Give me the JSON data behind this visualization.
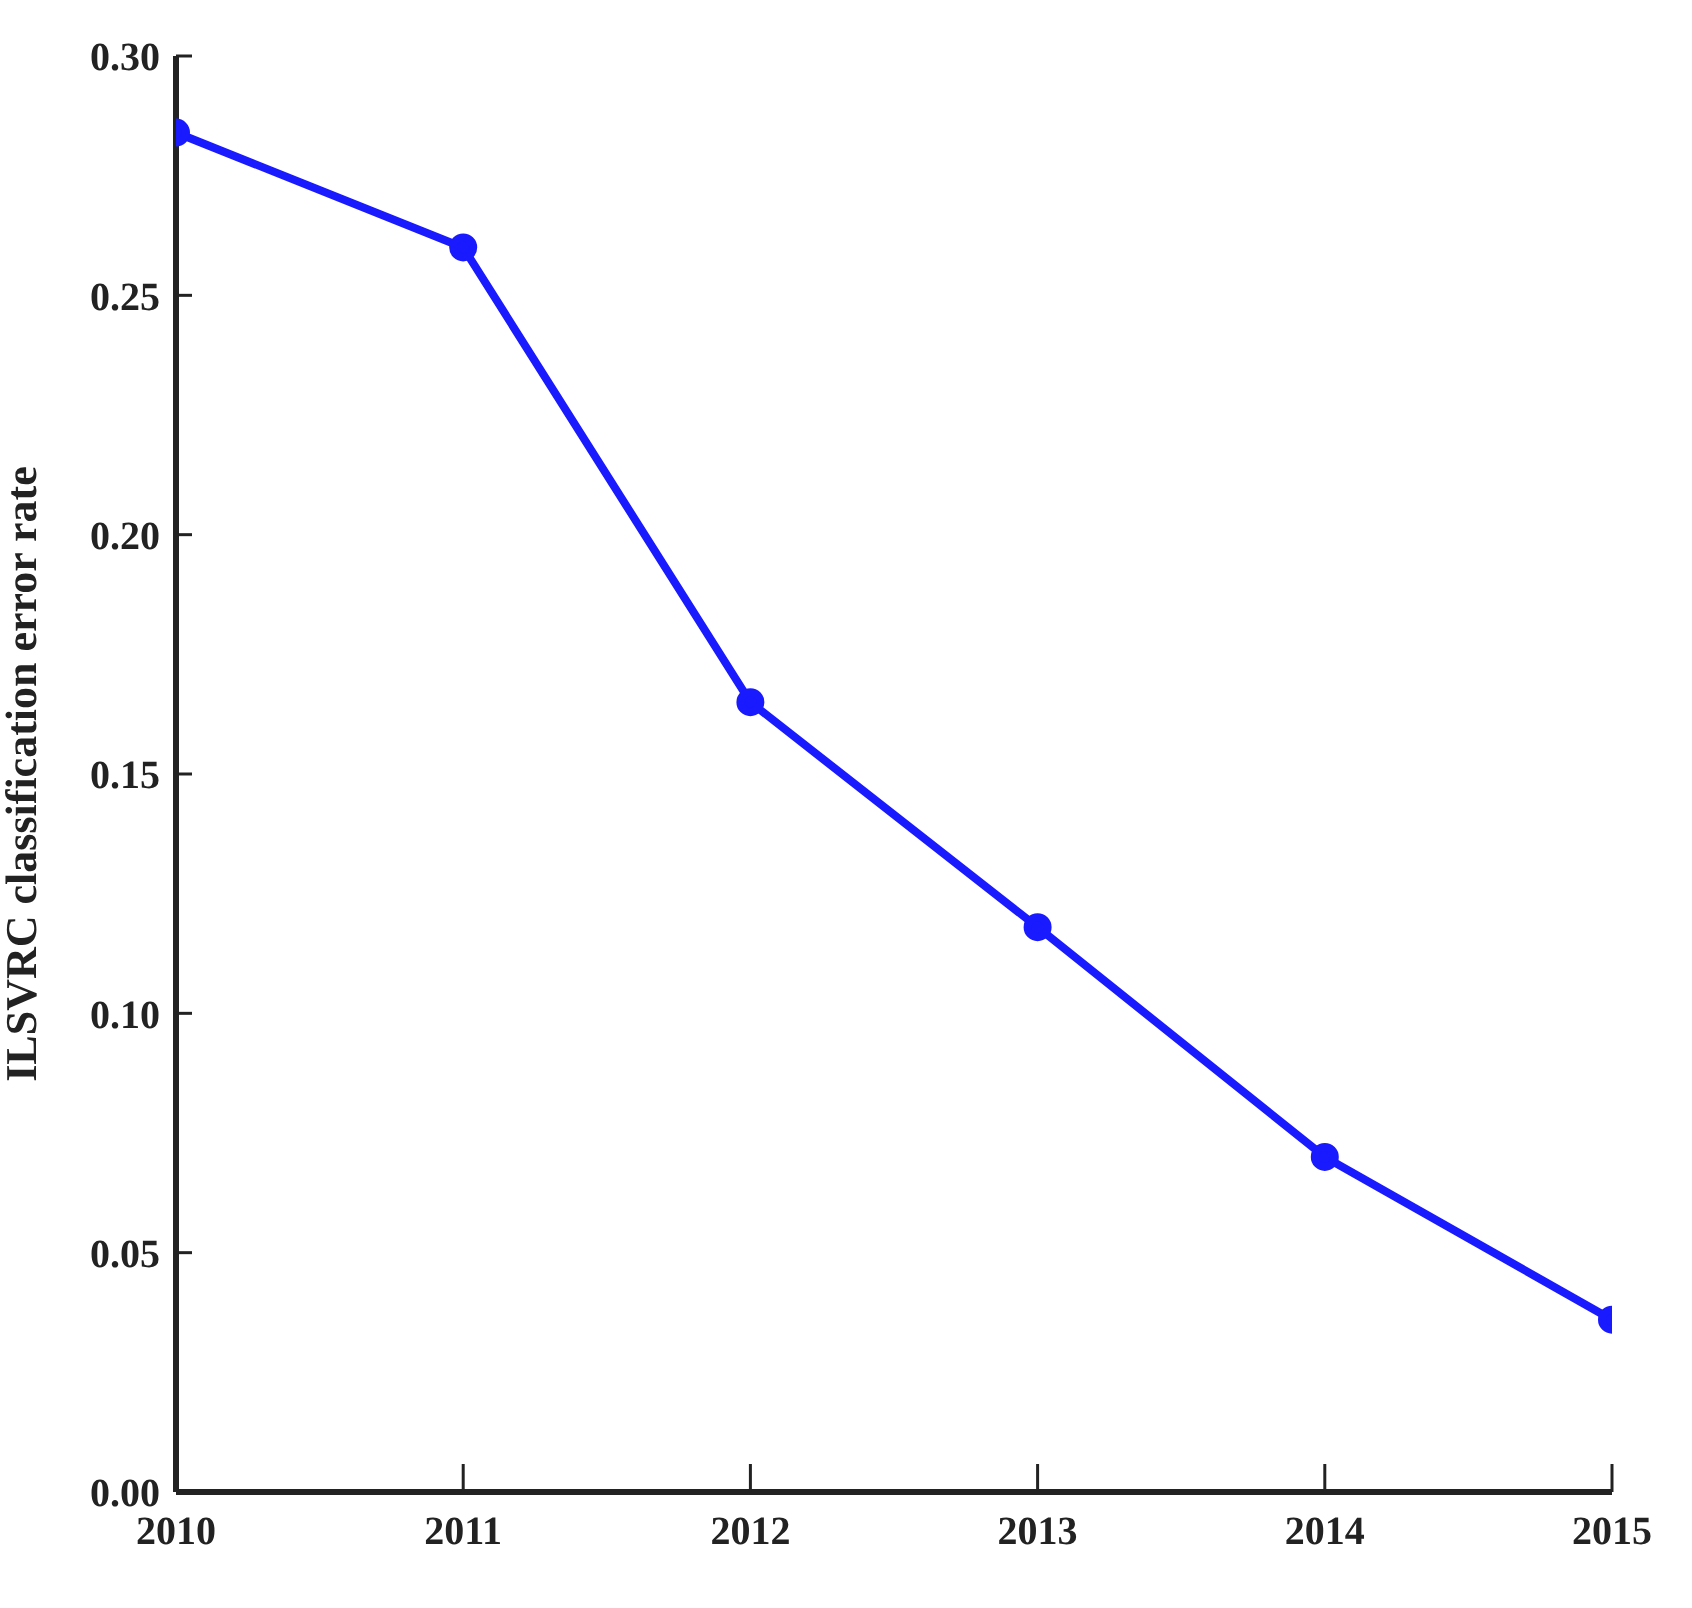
{
  "chart_data": {
    "type": "line",
    "ylabel": "ILSVRC classification error rate",
    "x": [
      2010,
      2011,
      2012,
      2013,
      2014,
      2015
    ],
    "series": [
      {
        "color": "#1a1aff",
        "values": [
          0.284,
          0.26,
          0.165,
          0.118,
          0.07,
          0.036
        ]
      }
    ],
    "xlim": [
      2010,
      2015
    ],
    "xticks": [
      2010,
      2011,
      2012,
      2013,
      2014,
      2015
    ],
    "ylim": [
      0,
      0.3
    ],
    "yticks": [
      {
        "value": 0,
        "label": "0.00"
      },
      {
        "value": 0.05,
        "label": "0.05"
      },
      {
        "value": 0.1,
        "label": "0.10"
      },
      {
        "value": 0.15,
        "label": "0.15"
      },
      {
        "value": 0.2,
        "label": "0.20"
      },
      {
        "value": 0.25,
        "label": "0.25"
      },
      {
        "value": 0.3,
        "label": "0.30"
      }
    ],
    "grid": false,
    "legend": false,
    "marker": "circle",
    "line_style": "solid"
  }
}
